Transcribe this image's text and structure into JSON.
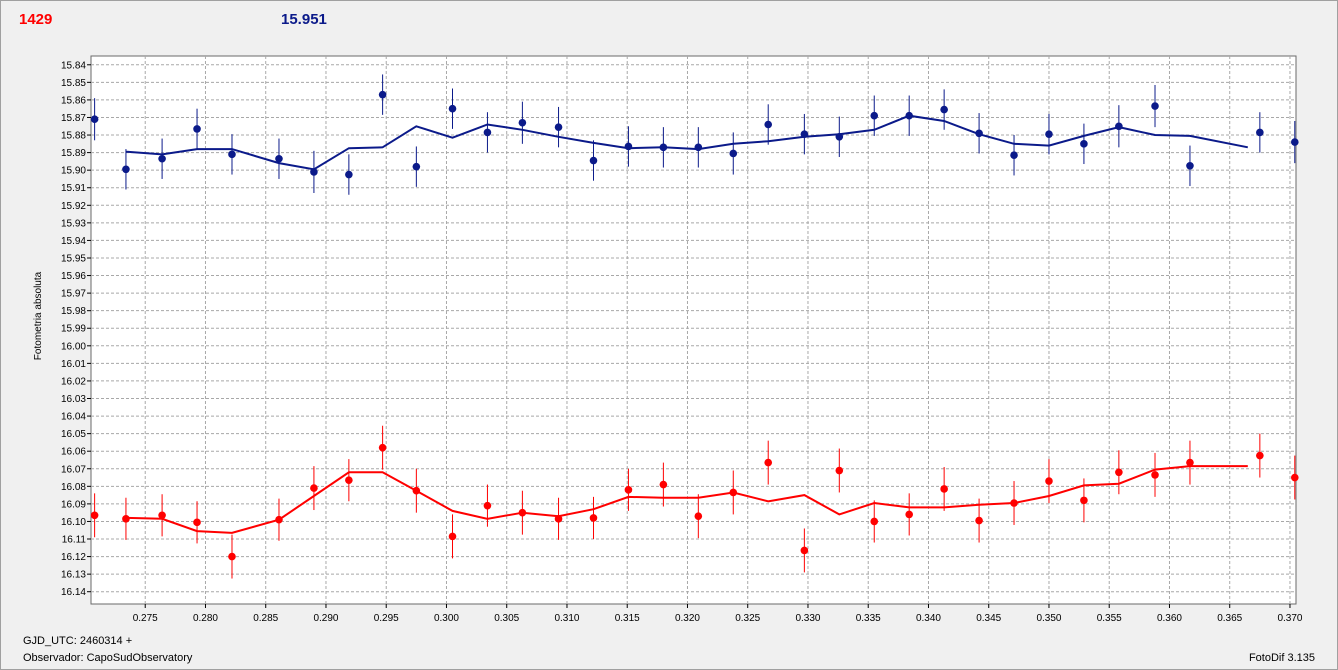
{
  "header": {
    "value_red": "1429",
    "value_blue": "15.951"
  },
  "footer": {
    "gjd": "GJD_UTC: 2460314 +",
    "observer": "Observador: CapoSudObservatory",
    "software": "FotoDif 3.135"
  },
  "colors": {
    "red": "#ff0000",
    "blue": "#0b1a8a",
    "grid": "#a8a8a8"
  },
  "chart_data": {
    "type": "scatter",
    "ylabel": "Fotometria absoluta",
    "xlabel": "",
    "xlim": [
      0.2705,
      0.3705
    ],
    "ylim": [
      16.147,
      15.835
    ],
    "y_inverted": true,
    "grid": true,
    "x_ticks": [
      "0.275",
      "0.280",
      "0.285",
      "0.290",
      "0.295",
      "0.300",
      "0.305",
      "0.310",
      "0.315",
      "0.320",
      "0.325",
      "0.330",
      "0.335",
      "0.340",
      "0.345",
      "0.350",
      "0.355",
      "0.360",
      "0.365",
      "0.370"
    ],
    "y_ticks": [
      "15.84",
      "15.85",
      "15.86",
      "15.87",
      "15.88",
      "15.89",
      "15.90",
      "15.91",
      "15.92",
      "15.93",
      "15.94",
      "15.95",
      "15.96",
      "15.97",
      "15.98",
      "15.99",
      "16.00",
      "16.01",
      "16.02",
      "16.03",
      "16.04",
      "16.05",
      "16.06",
      "16.07",
      "16.08",
      "16.09",
      "16.10",
      "16.11",
      "16.12",
      "16.13",
      "16.14"
    ],
    "series": [
      {
        "color": "#0b1a8a",
        "points": [
          {
            "x": 0.2708,
            "y": 15.871,
            "err": 0.012
          },
          {
            "x": 0.2734,
            "y": 15.8995,
            "err": 0.0115
          },
          {
            "x": 0.2764,
            "y": 15.8935,
            "err": 0.0115
          },
          {
            "x": 0.2793,
            "y": 15.8765,
            "err": 0.0115
          },
          {
            "x": 0.2822,
            "y": 15.891,
            "err": 0.0115
          },
          {
            "x": 0.2861,
            "y": 15.8935,
            "err": 0.0115
          },
          {
            "x": 0.289,
            "y": 15.901,
            "err": 0.012
          },
          {
            "x": 0.2919,
            "y": 15.9025,
            "err": 0.0115
          },
          {
            "x": 0.2947,
            "y": 15.857,
            "err": 0.0115
          },
          {
            "x": 0.2975,
            "y": 15.898,
            "err": 0.0115
          },
          {
            "x": 0.3005,
            "y": 15.865,
            "err": 0.0115
          },
          {
            "x": 0.3034,
            "y": 15.8785,
            "err": 0.0115
          },
          {
            "x": 0.3063,
            "y": 15.873,
            "err": 0.012
          },
          {
            "x": 0.3093,
            "y": 15.8755,
            "err": 0.0115
          },
          {
            "x": 0.3122,
            "y": 15.8945,
            "err": 0.0115
          },
          {
            "x": 0.3151,
            "y": 15.8865,
            "err": 0.0115
          },
          {
            "x": 0.318,
            "y": 15.887,
            "err": 0.0115
          },
          {
            "x": 0.3209,
            "y": 15.887,
            "err": 0.0115
          },
          {
            "x": 0.3238,
            "y": 15.8905,
            "err": 0.012
          },
          {
            "x": 0.3267,
            "y": 15.874,
            "err": 0.0115
          },
          {
            "x": 0.3297,
            "y": 15.8795,
            "err": 0.0115
          },
          {
            "x": 0.3326,
            "y": 15.881,
            "err": 0.0115
          },
          {
            "x": 0.3355,
            "y": 15.869,
            "err": 0.0115
          },
          {
            "x": 0.3384,
            "y": 15.869,
            "err": 0.0115
          },
          {
            "x": 0.3413,
            "y": 15.8655,
            "err": 0.0115
          },
          {
            "x": 0.3442,
            "y": 15.879,
            "err": 0.0115
          },
          {
            "x": 0.3471,
            "y": 15.8915,
            "err": 0.0115
          },
          {
            "x": 0.35,
            "y": 15.8795,
            "err": 0.0115
          },
          {
            "x": 0.3529,
            "y": 15.885,
            "err": 0.0115
          },
          {
            "x": 0.3558,
            "y": 15.875,
            "err": 0.012
          },
          {
            "x": 0.3588,
            "y": 15.8635,
            "err": 0.012
          },
          {
            "x": 0.3617,
            "y": 15.8975,
            "err": 0.0115
          },
          {
            "x": 0.3675,
            "y": 15.8785,
            "err": 0.0115
          },
          {
            "x": 0.3704,
            "y": 15.884,
            "err": 0.012
          }
        ],
        "trend": [
          {
            "x": 0.2734,
            "y": 15.8895
          },
          {
            "x": 0.2764,
            "y": 15.891
          },
          {
            "x": 0.2793,
            "y": 15.888
          },
          {
            "x": 0.2822,
            "y": 15.888
          },
          {
            "x": 0.2861,
            "y": 15.896
          },
          {
            "x": 0.289,
            "y": 15.8995
          },
          {
            "x": 0.2919,
            "y": 15.8875
          },
          {
            "x": 0.2947,
            "y": 15.887
          },
          {
            "x": 0.2975,
            "y": 15.875
          },
          {
            "x": 0.3005,
            "y": 15.8815
          },
          {
            "x": 0.3034,
            "y": 15.874
          },
          {
            "x": 0.3063,
            "y": 15.877
          },
          {
            "x": 0.3093,
            "y": 15.881
          },
          {
            "x": 0.3122,
            "y": 15.8845
          },
          {
            "x": 0.3151,
            "y": 15.8875
          },
          {
            "x": 0.318,
            "y": 15.887
          },
          {
            "x": 0.3209,
            "y": 15.888
          },
          {
            "x": 0.3238,
            "y": 15.885
          },
          {
            "x": 0.3267,
            "y": 15.8835
          },
          {
            "x": 0.3297,
            "y": 15.881
          },
          {
            "x": 0.3326,
            "y": 15.8795
          },
          {
            "x": 0.3355,
            "y": 15.877
          },
          {
            "x": 0.3384,
            "y": 15.869
          },
          {
            "x": 0.3413,
            "y": 15.872
          },
          {
            "x": 0.3442,
            "y": 15.8795
          },
          {
            "x": 0.3471,
            "y": 15.885
          },
          {
            "x": 0.35,
            "y": 15.886
          },
          {
            "x": 0.3529,
            "y": 15.8805
          },
          {
            "x": 0.3558,
            "y": 15.8755
          },
          {
            "x": 0.3588,
            "y": 15.88
          },
          {
            "x": 0.3617,
            "y": 15.8805
          },
          {
            "x": 0.3665,
            "y": 15.887
          }
        ]
      },
      {
        "color": "#ff0000",
        "points": [
          {
            "x": 0.2708,
            "y": 16.0965,
            "err": 0.0125
          },
          {
            "x": 0.2734,
            "y": 16.0985,
            "err": 0.012
          },
          {
            "x": 0.2764,
            "y": 16.0965,
            "err": 0.012
          },
          {
            "x": 0.2793,
            "y": 16.1005,
            "err": 0.012
          },
          {
            "x": 0.2822,
            "y": 16.12,
            "err": 0.0125
          },
          {
            "x": 0.2861,
            "y": 16.099,
            "err": 0.012
          },
          {
            "x": 0.289,
            "y": 16.081,
            "err": 0.0125
          },
          {
            "x": 0.2919,
            "y": 16.0765,
            "err": 0.012
          },
          {
            "x": 0.2947,
            "y": 16.058,
            "err": 0.0125
          },
          {
            "x": 0.2975,
            "y": 16.0825,
            "err": 0.0125
          },
          {
            "x": 0.3005,
            "y": 16.1085,
            "err": 0.0125
          },
          {
            "x": 0.3034,
            "y": 16.091,
            "err": 0.012
          },
          {
            "x": 0.3063,
            "y": 16.095,
            "err": 0.0125
          },
          {
            "x": 0.3093,
            "y": 16.0985,
            "err": 0.012
          },
          {
            "x": 0.3122,
            "y": 16.098,
            "err": 0.012
          },
          {
            "x": 0.3151,
            "y": 16.082,
            "err": 0.012
          },
          {
            "x": 0.318,
            "y": 16.079,
            "err": 0.0125
          },
          {
            "x": 0.3209,
            "y": 16.097,
            "err": 0.0125
          },
          {
            "x": 0.3238,
            "y": 16.0835,
            "err": 0.0125
          },
          {
            "x": 0.3267,
            "y": 16.0665,
            "err": 0.0125
          },
          {
            "x": 0.3297,
            "y": 16.1165,
            "err": 0.0125
          },
          {
            "x": 0.3326,
            "y": 16.071,
            "err": 0.0125
          },
          {
            "x": 0.3355,
            "y": 16.1,
            "err": 0.012
          },
          {
            "x": 0.3384,
            "y": 16.096,
            "err": 0.012
          },
          {
            "x": 0.3413,
            "y": 16.0815,
            "err": 0.0125
          },
          {
            "x": 0.3442,
            "y": 16.0995,
            "err": 0.0125
          },
          {
            "x": 0.3471,
            "y": 16.0895,
            "err": 0.0125
          },
          {
            "x": 0.35,
            "y": 16.077,
            "err": 0.0125
          },
          {
            "x": 0.3529,
            "y": 16.088,
            "err": 0.0125
          },
          {
            "x": 0.3558,
            "y": 16.072,
            "err": 0.0125
          },
          {
            "x": 0.3588,
            "y": 16.0735,
            "err": 0.0125
          },
          {
            "x": 0.3617,
            "y": 16.0665,
            "err": 0.0125
          },
          {
            "x": 0.3675,
            "y": 16.0625,
            "err": 0.0125
          },
          {
            "x": 0.3704,
            "y": 16.075,
            "err": 0.0125
          }
        ],
        "trend": [
          {
            "x": 0.2734,
            "y": 16.098
          },
          {
            "x": 0.2764,
            "y": 16.0985
          },
          {
            "x": 0.2793,
            "y": 16.1055
          },
          {
            "x": 0.2822,
            "y": 16.1065
          },
          {
            "x": 0.2861,
            "y": 16.099
          },
          {
            "x": 0.289,
            "y": 16.0855
          },
          {
            "x": 0.2919,
            "y": 16.072
          },
          {
            "x": 0.2947,
            "y": 16.072
          },
          {
            "x": 0.2975,
            "y": 16.0825
          },
          {
            "x": 0.3005,
            "y": 16.094
          },
          {
            "x": 0.3034,
            "y": 16.0985
          },
          {
            "x": 0.3063,
            "y": 16.095
          },
          {
            "x": 0.3093,
            "y": 16.097
          },
          {
            "x": 0.3122,
            "y": 16.093
          },
          {
            "x": 0.3151,
            "y": 16.086
          },
          {
            "x": 0.318,
            "y": 16.0865
          },
          {
            "x": 0.3209,
            "y": 16.0865
          },
          {
            "x": 0.3238,
            "y": 16.0835
          },
          {
            "x": 0.3267,
            "y": 16.0885
          },
          {
            "x": 0.3297,
            "y": 16.085
          },
          {
            "x": 0.3326,
            "y": 16.096
          },
          {
            "x": 0.3355,
            "y": 16.0895
          },
          {
            "x": 0.3384,
            "y": 16.092
          },
          {
            "x": 0.3413,
            "y": 16.092
          },
          {
            "x": 0.3442,
            "y": 16.0905
          },
          {
            "x": 0.3471,
            "y": 16.0895
          },
          {
            "x": 0.35,
            "y": 16.0855
          },
          {
            "x": 0.3529,
            "y": 16.0795
          },
          {
            "x": 0.3558,
            "y": 16.0785
          },
          {
            "x": 0.3588,
            "y": 16.0705
          },
          {
            "x": 0.3617,
            "y": 16.0685
          },
          {
            "x": 0.3665,
            "y": 16.0685
          }
        ]
      }
    ]
  }
}
